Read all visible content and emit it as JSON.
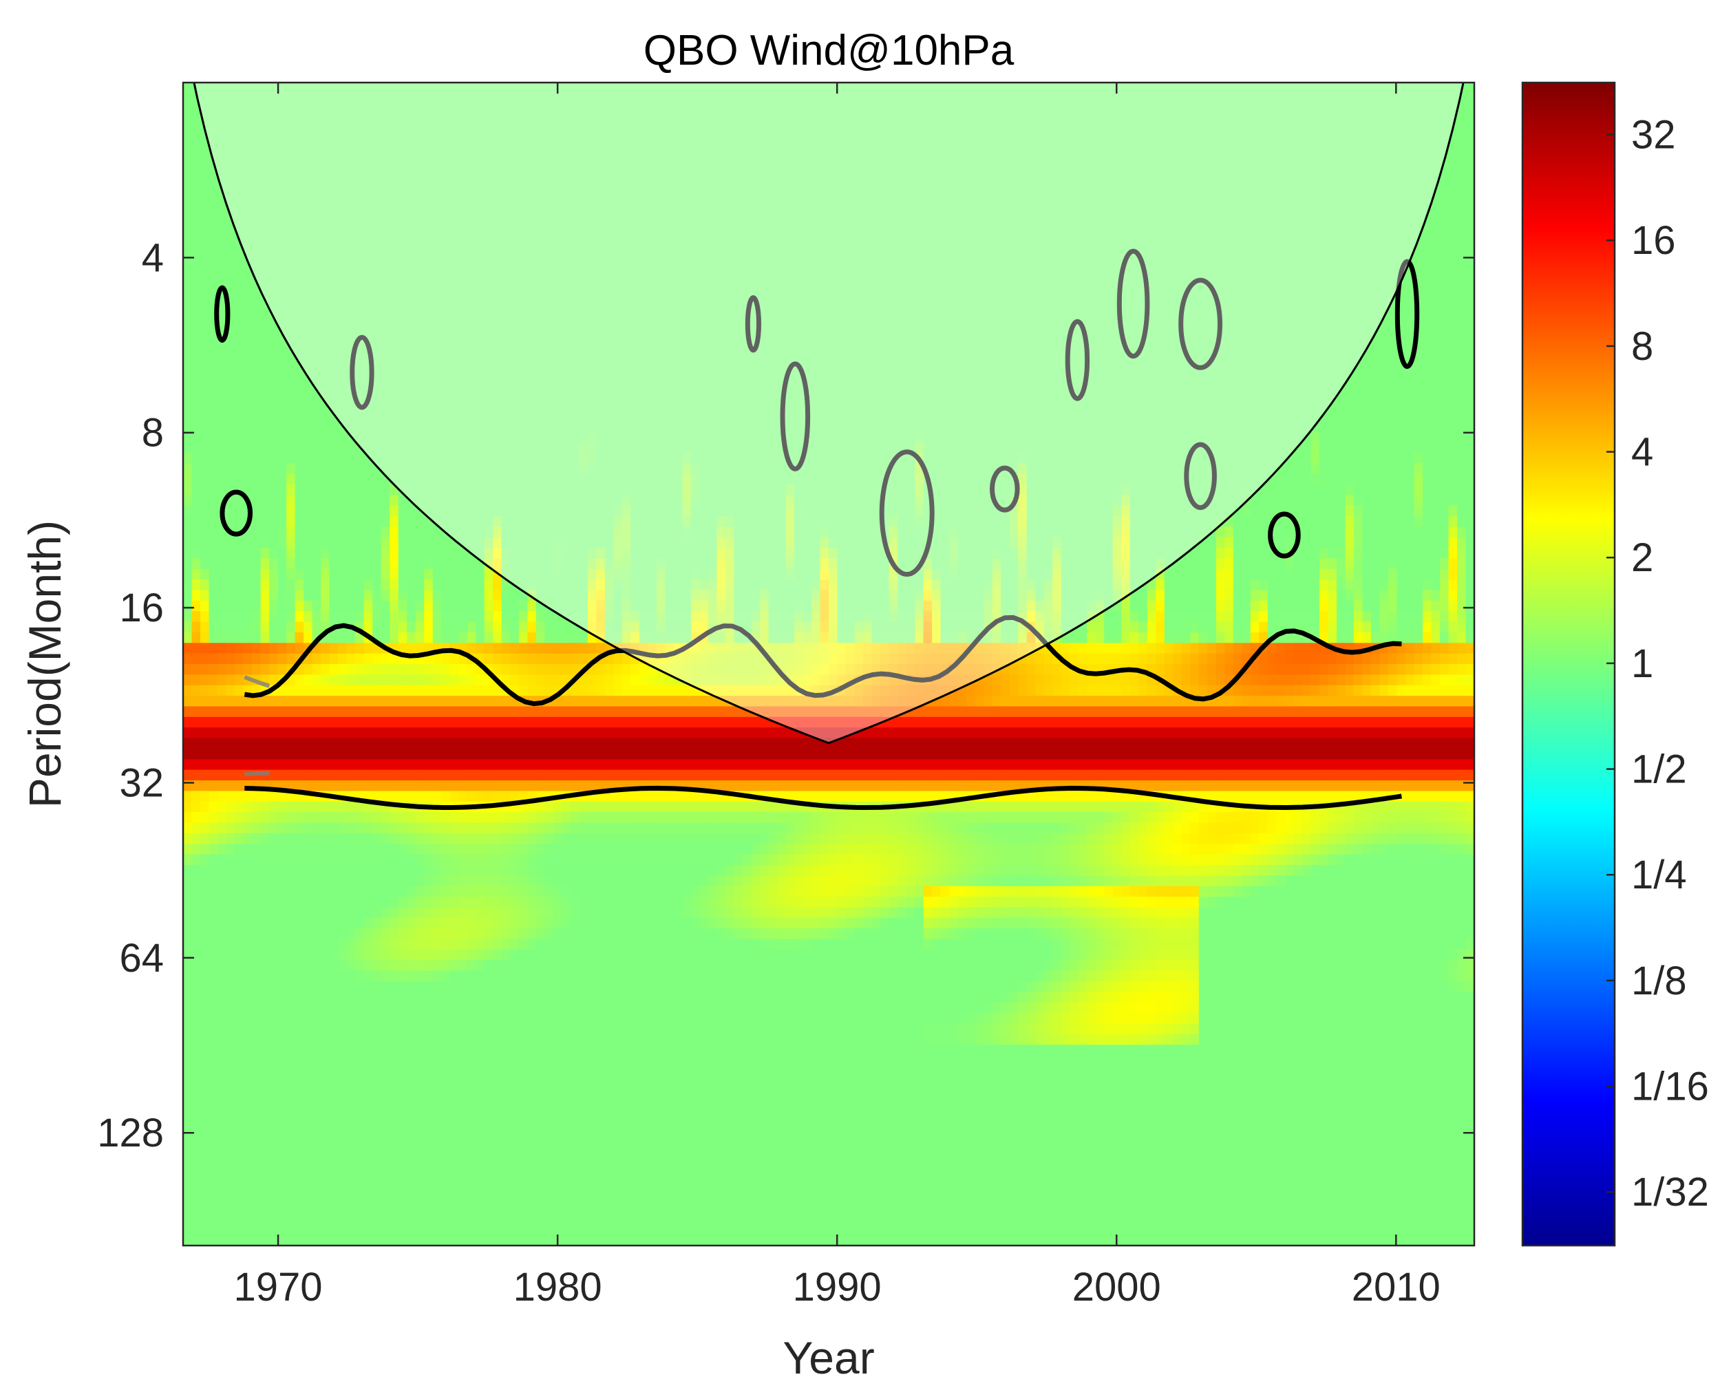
{
  "chart_data": {
    "type": "heatmap",
    "title": "QBO Wind@10hPa",
    "xlabel": "Year",
    "ylabel": "Period(Month)",
    "x_ticks": [
      1970,
      1980,
      1990,
      2000,
      2010
    ],
    "xlim": [
      1966.6,
      2012.8
    ],
    "y_ticks": [
      "4",
      "8",
      "16",
      "32",
      "64",
      "128"
    ],
    "y_tick_values": [
      4,
      8,
      16,
      32,
      64,
      128
    ],
    "ylim": [
      2,
      200
    ],
    "y_scale": "log2",
    "y_direction": "reverse",
    "colorbar": {
      "ticks": [
        "32",
        "16",
        "8",
        "4",
        "2",
        "1",
        "1/2",
        "1/4",
        "1/8",
        "1/16",
        "1/32"
      ],
      "tick_values": [
        32,
        16,
        8,
        4,
        2,
        1,
        0.5,
        0.25,
        0.125,
        0.0625,
        0.03125
      ],
      "scale": "log2",
      "range": [
        0.022,
        45
      ],
      "colormap": "jet"
    },
    "dominant_band": {
      "period_low": 20,
      "period_high": 34,
      "peak_period": 28,
      "peak_power": 32
    },
    "significance_contour_color": "#000000",
    "cone_of_influence_color": "#000000",
    "outside_coi_contour_color": "#808080"
  }
}
